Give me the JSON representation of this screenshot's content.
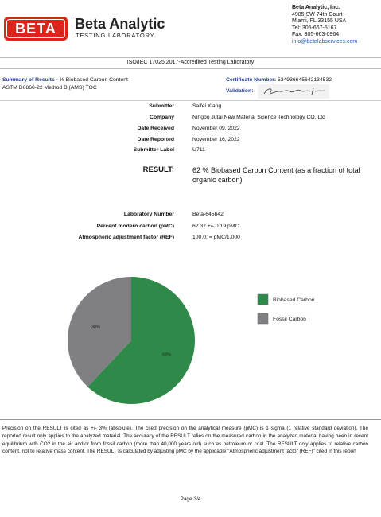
{
  "header": {
    "logo": "BETA",
    "company": "Beta Analytic",
    "subtitle": "TESTING LABORATORY",
    "address": [
      "Beta Analytic, Inc.",
      "4985 SW 74th Court",
      "Miami, FL 33155 USA",
      "Tel: 305-667-5167",
      "Fax: 305-663-0964",
      "info@betalabservices.com"
    ]
  },
  "accreditation": "ISO/IEC 17025:2017-Accredited Testing Laboratory",
  "summary": {
    "label": "Summary of Results -",
    "title": "% Biobased Carbon Content",
    "method": "ASTM D6866-22 Method B (AMS) TOC",
    "certificate_label": "Certificate Number:",
    "certificate_number": "534936645642134532",
    "validation_label": "Validation:"
  },
  "fields": [
    [
      "Submitter",
      "Saifei Xiang"
    ],
    [
      "Company",
      "Ningbo Jutai New Material Science Technology CO.,Ltd"
    ],
    [
      "Date Received",
      "November 09, 2022"
    ],
    [
      "Date Reported",
      "November 16, 2022"
    ],
    [
      "Submitter Label",
      "U711"
    ]
  ],
  "result": {
    "label": "RESULT:",
    "text": "62 % Biobased Carbon Content  (as a fraction of total organic carbon)"
  },
  "lab_fields": [
    [
      "Laboratory Number",
      "Beta-645642"
    ],
    [
      "Percent modern carbon (pMC)",
      "62.37 +/- 0.19 pMC"
    ],
    [
      "Atmospheric adjustment factor (REF)",
      "100.0; = pMC/1.000"
    ]
  ],
  "chart_data": {
    "type": "pie",
    "categories": [
      "Biobased Carbon",
      "Fossil Carbon"
    ],
    "values": [
      62,
      38
    ],
    "value_labels": [
      "62%",
      "38%"
    ],
    "colors": [
      "#2f8a4a",
      "#808084"
    ]
  },
  "footnote": "Precision on the RESULT is cited as +/- 3% (absolute). The cited precision on the analytical measure (pMC) is 1 sigma (1 relative standard deviation). The reported result only applies to the analyzed material. The accuracy of the RESULT relies on the measured carbon in the analyzed material having been in recent equilibrium with CO2 in the air and/or from fossil carbon (more than 40,000 years old) such as petroleum or coal. The RESULT only applies to relative carbon content, not to relative mass content. The RESULT is calculated by adjusting pMC by the applicable \"Atmospheric adjustment factor (REF)\" cited in this report",
  "page": "Page 3/4"
}
